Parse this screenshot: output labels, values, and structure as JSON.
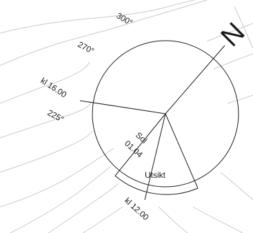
{
  "north_label": "N",
  "bearings": {
    "deg_300": "300°",
    "deg_270": "270°",
    "deg_225": "225°"
  },
  "time_labels": {
    "kl_1600": "kl 16.00",
    "kl_1200": "kl 12.00"
  },
  "sun_label": {
    "line1": "Sol",
    "line2": "01.04"
  },
  "view_label": "Utsikt",
  "colors": {
    "ink": "#1a1a1a",
    "contour": "#c9c9c9",
    "background": "#ffffff"
  }
}
